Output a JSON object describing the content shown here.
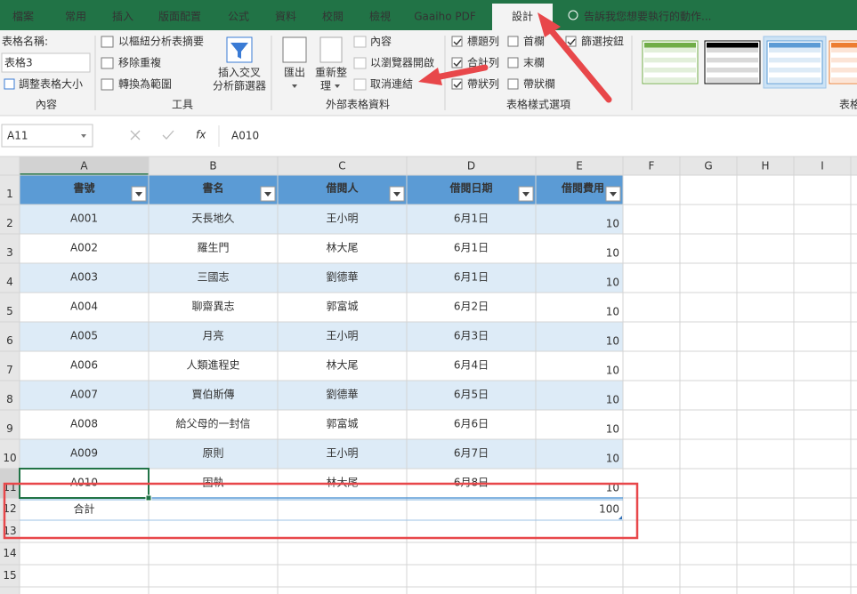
{
  "tabs": [
    {
      "label": "檔案"
    },
    {
      "label": "常用"
    },
    {
      "label": "插入"
    },
    {
      "label": "版面配置"
    },
    {
      "label": "公式"
    },
    {
      "label": "資料"
    },
    {
      "label": "校閱"
    },
    {
      "label": "檢視"
    },
    {
      "label": "Gaaiho PDF"
    },
    {
      "label": "設計",
      "active": true
    }
  ],
  "tell_me": "告訴我您想要執行的動作...",
  "ribbon": {
    "properties": {
      "name_label": "表格名稱:",
      "table_name": "表格3",
      "resize": "調整表格大小",
      "group": "內容"
    },
    "tools": {
      "items": [
        "以樞紐分析表摘要",
        "移除重複",
        "轉換為範圍"
      ],
      "slicer": [
        "插入交叉",
        "分析篩選器"
      ],
      "group": "工具"
    },
    "external": {
      "export": "匯出",
      "refresh": [
        "重新整",
        "理"
      ],
      "items": [
        "內容",
        "以瀏覽器開啟",
        "取消連結"
      ],
      "group": "外部表格資料"
    },
    "style_options": {
      "options": [
        {
          "label": "標題列",
          "checked": true
        },
        {
          "label": "合計列",
          "checked": true
        },
        {
          "label": "帶狀列",
          "checked": true
        },
        {
          "label": "首欄",
          "checked": false
        },
        {
          "label": "末欄",
          "checked": false
        },
        {
          "label": "帶狀欄",
          "checked": false
        },
        {
          "label": "篩選按鈕",
          "checked": true
        }
      ],
      "group": "表格樣式選項"
    },
    "styles": {
      "group": "表格"
    }
  },
  "formula_bar": {
    "name_box": "A11",
    "fx_label": "fx",
    "formula": "A010"
  },
  "sheet": {
    "columns": [
      "A",
      "B",
      "C",
      "D",
      "E",
      "F",
      "G",
      "H",
      "I"
    ],
    "rows": [
      1,
      2,
      3,
      4,
      5,
      6,
      7,
      8,
      9,
      10,
      11,
      12,
      13,
      14,
      15
    ],
    "table": {
      "header": [
        "書號",
        "書名",
        "借閱人",
        "借閱日期",
        "借閱費用"
      ],
      "rows": [
        [
          "A001",
          "天長地久",
          "王小明",
          "6月1日",
          10
        ],
        [
          "A002",
          "羅生門",
          "林大尾",
          "6月1日",
          10
        ],
        [
          "A003",
          "三國志",
          "劉德華",
          "6月1日",
          10
        ],
        [
          "A004",
          "聊齋異志",
          "郭富城",
          "6月2日",
          10
        ],
        [
          "A005",
          "月亮",
          "王小明",
          "6月3日",
          10
        ],
        [
          "A006",
          "人類進程史",
          "林大尾",
          "6月4日",
          10
        ],
        [
          "A007",
          "賈伯斯傳",
          "劉德華",
          "6月5日",
          10
        ],
        [
          "A008",
          "給父母的一封信",
          "郭富城",
          "6月6日",
          10
        ],
        [
          "A009",
          "原則",
          "王小明",
          "6月7日",
          10
        ],
        [
          "A010",
          "固執",
          "林大尾",
          "6月8日",
          10
        ]
      ],
      "total": {
        "label": "合計",
        "value": 100
      }
    }
  }
}
